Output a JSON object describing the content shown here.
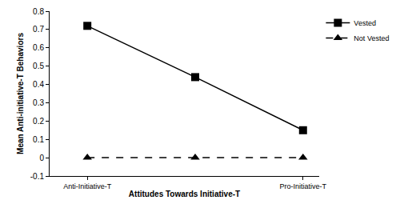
{
  "chart_data": {
    "type": "line",
    "x_label": "Attitudes Towards Initiative-T",
    "y_label": "Mean Anti-initiative-T Behaviors",
    "categories": [
      "Anti-Initiative-T",
      null,
      "Pro-Initiative-T"
    ],
    "series": [
      {
        "name": "Vested",
        "color": "#000000",
        "marker": "square",
        "line_style": "solid",
        "values": [
          0.72,
          0.44,
          0.15
        ]
      },
      {
        "name": "Not Vested",
        "color": "#000000",
        "marker": "triangle-up",
        "line_style": "dash",
        "values": [
          0,
          0,
          0
        ]
      }
    ],
    "ylim": [
      -0.1,
      0.8
    ],
    "yticks": [
      -0.1,
      0,
      0.1,
      0.2,
      0.3,
      0.4,
      0.5,
      0.6,
      0.7,
      0.8
    ],
    "grid": false,
    "legend": "top right"
  }
}
